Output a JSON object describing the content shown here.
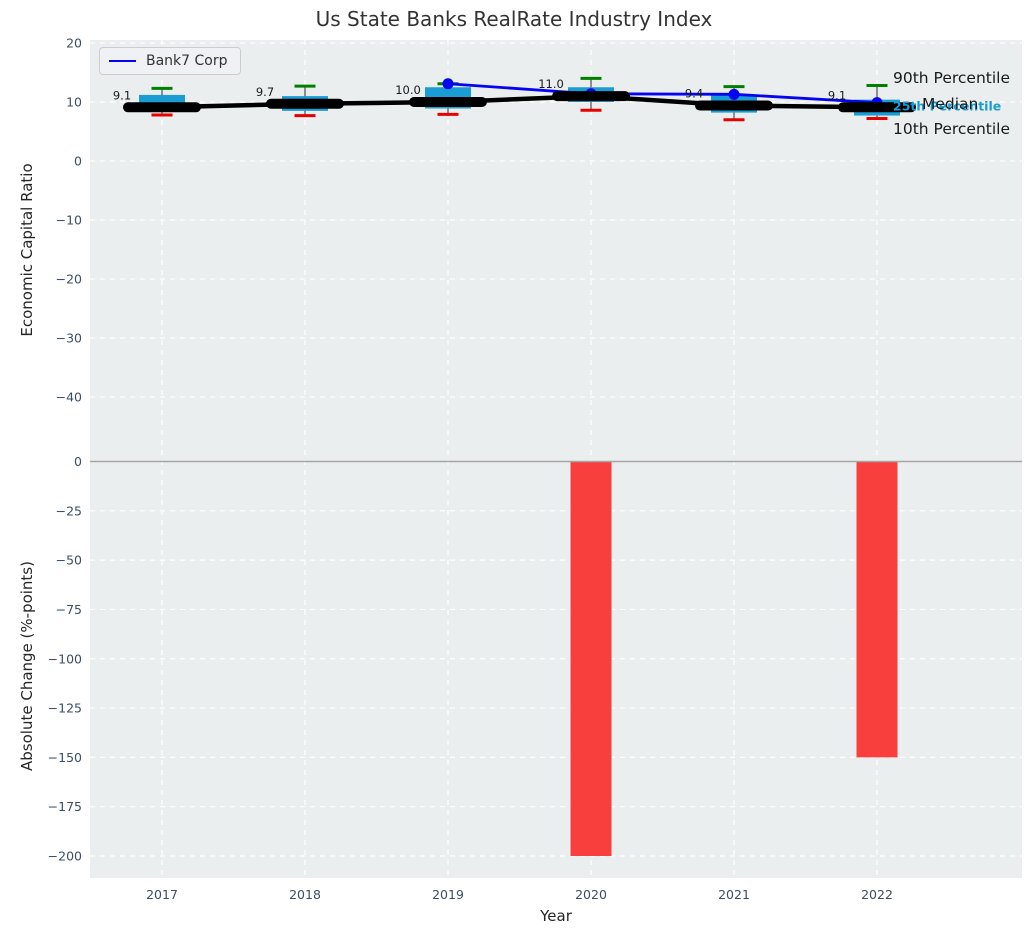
{
  "title": "Us State Banks RealRate Industry Index",
  "legend": {
    "label": "Bank7 Corp"
  },
  "right_labels": {
    "p90": "90th Percentile",
    "median": "Median",
    "p25": "25th Percentile",
    "p10": "10th Percentile"
  },
  "top_axis": {
    "ylabel": "Economic Capital Ratio",
    "yticks": [
      20,
      10,
      0,
      -10,
      -20,
      -30,
      -40
    ]
  },
  "bottom_axis": {
    "ylabel": "Absolute Change (%-points)",
    "yticks": [
      0,
      -25,
      -50,
      -75,
      -100,
      -125,
      -150,
      -175,
      -200
    ],
    "xlabel": "Year",
    "xticks": [
      2017,
      2018,
      2019,
      2020,
      2021,
      2022
    ]
  },
  "colors": {
    "panel_bg": "#ebeeef",
    "grid": "#ffffff",
    "box_fill": "#1a9cd5",
    "whisker": "#4d4d4d",
    "cap_top": "#008000",
    "cap_bottom": "#e60000",
    "median_line": "#000000",
    "bank7_line": "#0404f0",
    "bar_fill": "#f93e3e",
    "zero_line": "#a6a6a6",
    "tick_text": "#3d4e63",
    "annotation_text": "#1a1a1a"
  },
  "chart_data": [
    {
      "type": "boxplot+line",
      "title": "Us State Banks RealRate Industry Index",
      "ylabel": "Economic Capital Ratio",
      "categories": [
        2017,
        2018,
        2019,
        2020,
        2021,
        2022
      ],
      "ylim": [
        -49,
        20.5
      ],
      "grid": true,
      "annotations": [
        "9.1",
        "9.7",
        "10.0",
        "11.0",
        "9.4",
        "9.1"
      ],
      "series": [
        {
          "name": "Median",
          "values": [
            9.1,
            9.7,
            10.0,
            11.0,
            9.4,
            9.1
          ]
        },
        {
          "name": "25th Percentile",
          "values": [
            8.5,
            8.5,
            8.9,
            10.0,
            8.2,
            7.7
          ]
        },
        {
          "name": "75th Percentile",
          "values": [
            11.2,
            11.0,
            12.5,
            12.5,
            11.2,
            10.4
          ]
        },
        {
          "name": "10th Percentile",
          "values": [
            7.8,
            7.7,
            7.9,
            8.6,
            7.0,
            7.2
          ]
        },
        {
          "name": "90th Percentile",
          "values": [
            12.3,
            12.7,
            13.1,
            14.0,
            12.6,
            12.8
          ]
        },
        {
          "name": "Bank7 Corp",
          "x": [
            2019,
            2020,
            2021,
            2022
          ],
          "values": [
            13.1,
            11.4,
            11.3,
            9.9
          ]
        }
      ],
      "legend_position": "upper left"
    },
    {
      "type": "bar",
      "categories": [
        2017,
        2018,
        2019,
        2020,
        2021,
        2022
      ],
      "values": [
        0,
        0,
        0,
        -200,
        0,
        -150
      ],
      "ylabel": "Absolute Change (%-points)",
      "xlabel": "Year",
      "ylim": [
        -211,
        4
      ],
      "grid": true
    }
  ]
}
